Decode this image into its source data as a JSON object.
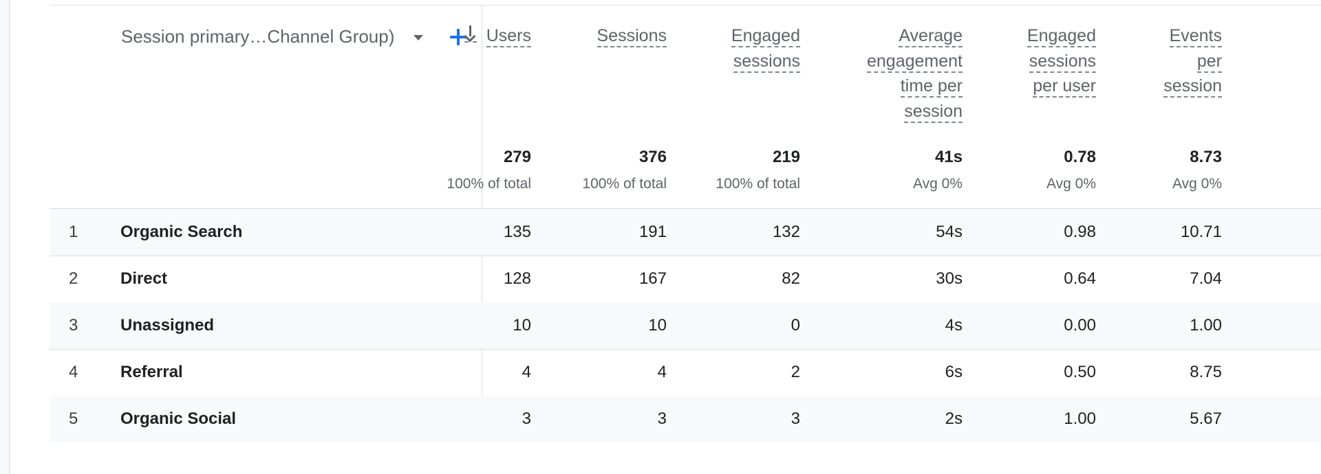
{
  "dimension": {
    "label": "Session primary…Channel Group)"
  },
  "metrics": [
    {
      "lines": [
        "Users"
      ],
      "sorted": true,
      "total": "279",
      "sub": "100% of total"
    },
    {
      "lines": [
        "Sessions"
      ],
      "total": "376",
      "sub": "100% of total"
    },
    {
      "lines": [
        "Engaged",
        "sessions"
      ],
      "total": "219",
      "sub": "100% of total"
    },
    {
      "lines": [
        "Average",
        "engagement",
        "time per",
        "session"
      ],
      "total": "41s",
      "sub": "Avg 0%"
    },
    {
      "lines": [
        "Engaged",
        "sessions",
        "per user"
      ],
      "total": "0.78",
      "sub": "Avg 0%"
    },
    {
      "lines": [
        "Events",
        "per",
        "session"
      ],
      "total": "8.73",
      "sub": "Avg 0%"
    }
  ],
  "rows": [
    {
      "num": "1",
      "name": "Organic Search",
      "values": [
        "135",
        "191",
        "132",
        "54s",
        "0.98",
        "10.71"
      ]
    },
    {
      "num": "2",
      "name": "Direct",
      "values": [
        "128",
        "167",
        "82",
        "30s",
        "0.64",
        "7.04"
      ]
    },
    {
      "num": "3",
      "name": "Unassigned",
      "values": [
        "10",
        "10",
        "0",
        "4s",
        "0.00",
        "1.00"
      ]
    },
    {
      "num": "4",
      "name": "Referral",
      "values": [
        "4",
        "4",
        "2",
        "6s",
        "0.50",
        "8.75"
      ]
    },
    {
      "num": "5",
      "name": "Organic Social",
      "values": [
        "3",
        "3",
        "3",
        "2s",
        "1.00",
        "5.67"
      ]
    }
  ]
}
